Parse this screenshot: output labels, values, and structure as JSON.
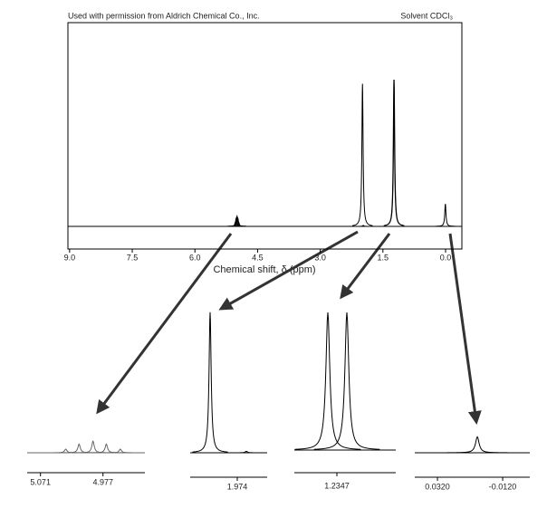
{
  "chart_data": [
    {
      "type": "spectrum",
      "credit": "Used with permission from Aldrich Chemical Co., Inc.",
      "solvent": "Solvent CDCl₃",
      "x_label": "Chemical shift, δ (ppm)",
      "color": "#000000",
      "x": [
        5.033,
        5.013,
        4.992,
        4.972,
        4.951,
        1.989,
        1.969,
        1.2377,
        1.2314,
        0.0051
      ],
      "values": [
        2,
        4,
        5,
        4,
        2,
        70,
        0.5,
        72,
        72,
        11
      ],
      "xlim": [
        9.04,
        -0.39
      ],
      "ylim": [
        0,
        100
      ],
      "xticks": [
        {
          "value": 9,
          "label": "9.0"
        },
        {
          "value": 7.5,
          "label": "7.5"
        },
        {
          "value": 6,
          "label": "6.0"
        },
        {
          "value": 4.5,
          "label": "4.5"
        },
        {
          "value": 3,
          "label": "3.0"
        },
        {
          "value": 1.5,
          "label": "1.5"
        },
        {
          "value": 0,
          "label": "0.0"
        }
      ]
    },
    {
      "type": "spectrum",
      "color": "#666666",
      "x": [
        5.033,
        5.013,
        4.992,
        4.972,
        4.951
      ],
      "values": [
        2.5,
        6,
        8,
        6,
        2.5
      ],
      "xlim": [
        5.091,
        4.914
      ],
      "ylim": [
        0,
        100
      ],
      "xticks": [
        5.071,
        4.977
      ]
    },
    {
      "type": "spectrum",
      "color": "#000000",
      "x": [
        1.989,
        1.969
      ],
      "values": [
        97,
        1
      ],
      "xlim": [
        2.0,
        1.9575
      ],
      "ylim": [
        0,
        100
      ],
      "xticks": [
        1.974
      ]
    },
    {
      "type": "spectrum",
      "color": "#000000",
      "x": [
        1.2377,
        1.2314
      ],
      "values": [
        95,
        95
      ],
      "xlim": [
        1.2488,
        1.2152
      ],
      "ylim": [
        0,
        100
      ],
      "xticks": [
        1.2347
      ]
    },
    {
      "type": "spectrum",
      "color": "#000000",
      "x": [
        0.0051
      ],
      "values": [
        11
      ],
      "xlim": [
        0.0473,
        -0.0303
      ],
      "ylim": [
        0,
        100
      ],
      "xticks": [
        {
          "value": 0.032,
          "label": "0.0320"
        },
        {
          "value": -0.012,
          "label": "-0.0120"
        }
      ]
    }
  ]
}
